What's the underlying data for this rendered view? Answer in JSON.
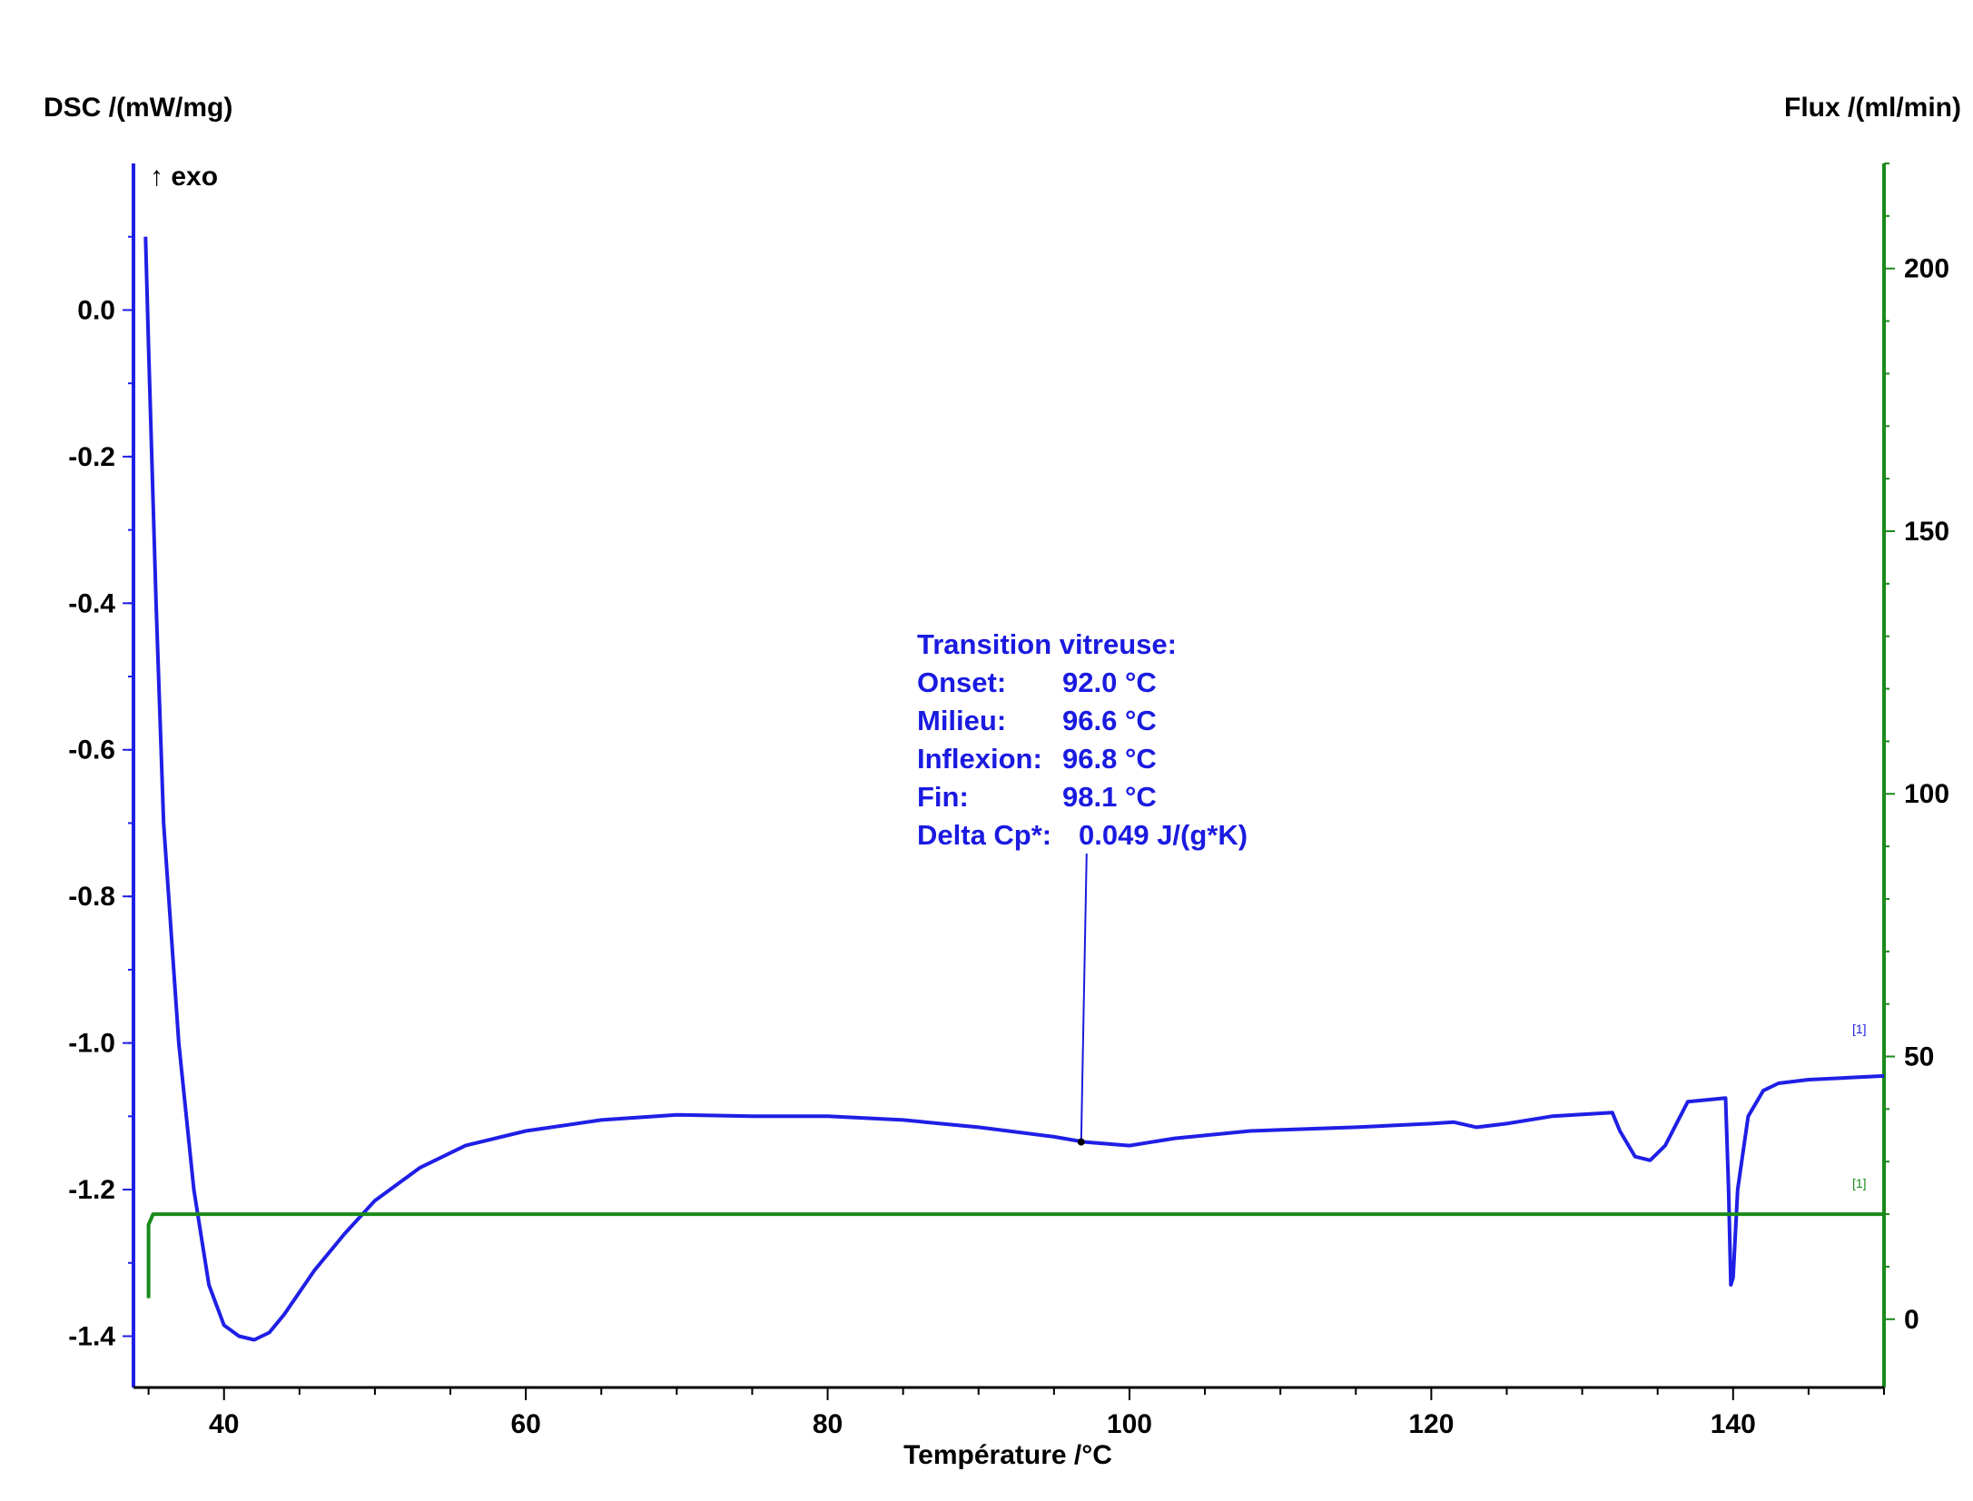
{
  "chart_data": {
    "type": "line",
    "xlabel": "Température /°C",
    "ylabel_left": "DSC /(mW/mg)",
    "ylabel_right": "Flux /(ml/min)",
    "exo_label": "↑ exo",
    "xlim": [
      34,
      150
    ],
    "ylim_left": [
      -1.47,
      0.2
    ],
    "ylim_right": [
      -13,
      220
    ],
    "x_ticks": [
      40,
      60,
      80,
      100,
      120,
      140
    ],
    "y_ticks_left": [
      0.0,
      -0.2,
      -0.4,
      -0.6,
      -0.8,
      -1.0,
      -1.2,
      -1.4
    ],
    "y_ticks_right": [
      200,
      150,
      100,
      50,
      0
    ],
    "y_tick_labels_left": [
      "0.0",
      "-0.2",
      "-0.4",
      "-0.6",
      "-0.8",
      "-1.0",
      "-1.2",
      "-1.4"
    ],
    "grid": false,
    "colors": {
      "dsc": "#1f1fe6",
      "flux": "#1a8a1a",
      "left_axis": "#1f1fe6",
      "right_axis": "#1a8a1a",
      "annotation": "#1a1ae0"
    },
    "series": [
      {
        "axis": "left",
        "x": [
          34.8,
          35.0,
          35.5,
          36,
          37,
          38,
          39,
          40,
          41,
          42,
          43,
          44,
          46,
          48,
          50,
          53,
          56,
          60,
          65,
          70,
          75,
          80,
          85,
          90,
          95,
          97,
          100,
          103,
          108,
          115,
          120,
          121.5,
          123,
          125,
          128,
          132,
          132.5,
          133.5,
          134.5,
          135.5,
          137,
          139.5,
          139.7,
          139.85,
          140.0,
          140.3,
          141,
          142,
          143,
          145,
          150
        ],
        "y": [
          0.1,
          -0.05,
          -0.4,
          -0.7,
          -1.0,
          -1.2,
          -1.33,
          -1.385,
          -1.4,
          -1.405,
          -1.395,
          -1.37,
          -1.31,
          -1.26,
          -1.215,
          -1.17,
          -1.14,
          -1.12,
          -1.105,
          -1.098,
          -1.1,
          -1.1,
          -1.105,
          -1.115,
          -1.128,
          -1.135,
          -1.14,
          -1.13,
          -1.12,
          -1.115,
          -1.11,
          -1.108,
          -1.115,
          -1.11,
          -1.1,
          -1.095,
          -1.12,
          -1.155,
          -1.16,
          -1.14,
          -1.08,
          -1.075,
          -1.2,
          -1.33,
          -1.32,
          -1.2,
          -1.1,
          -1.065,
          -1.055,
          -1.05,
          -1.045
        ]
      },
      {
        "axis": "right",
        "x": [
          35.0,
          35.0,
          35.3,
          150
        ],
        "y": [
          4,
          18,
          20,
          20
        ]
      }
    ],
    "annotation": {
      "title": "Transition vitreuse:",
      "rows": [
        {
          "label": "Onset:",
          "value": "92.0 °C"
        },
        {
          "label": "Milieu:",
          "value": "96.6 °C"
        },
        {
          "label": "Inflexion:",
          "value": "96.8 °C"
        },
        {
          "label": "Fin:",
          "value": "98.1 °C"
        },
        {
          "label": "Delta Cp*:",
          "value": "0.049 J/(g*K)"
        }
      ],
      "point": {
        "x": 96.8,
        "y": -1.135
      }
    },
    "end_markers": [
      "[1]",
      "[1]"
    ]
  }
}
